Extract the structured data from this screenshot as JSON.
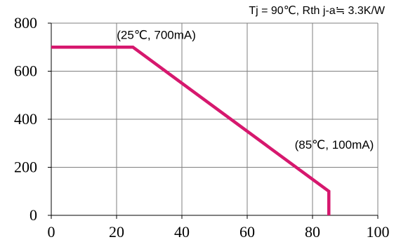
{
  "chart_data": {
    "type": "line",
    "title": "Tj = 90℃, Rth j-a≒ 3.3K/W",
    "xlabel": "",
    "ylabel": "",
    "xlim": [
      0,
      100
    ],
    "ylim": [
      0,
      800
    ],
    "x_ticks": [
      0,
      20,
      40,
      60,
      80,
      100
    ],
    "y_ticks": [
      0,
      200,
      400,
      600,
      800
    ],
    "x_tick_labels": [
      "0",
      "20",
      "40",
      "60",
      "80",
      "100"
    ],
    "y_tick_labels": [
      "0",
      "200",
      "400",
      "600",
      "800"
    ],
    "grid": true,
    "series": [
      {
        "x": [
          0,
          25,
          85,
          85
        ],
        "y": [
          700,
          700,
          100,
          0
        ],
        "color": "#d6186e"
      }
    ],
    "annotations": [
      {
        "text": "(25℃, 700mA)",
        "x": 25,
        "y": 700
      },
      {
        "text": "(85℃, 100mA)",
        "x": 85,
        "y": 100
      }
    ]
  }
}
